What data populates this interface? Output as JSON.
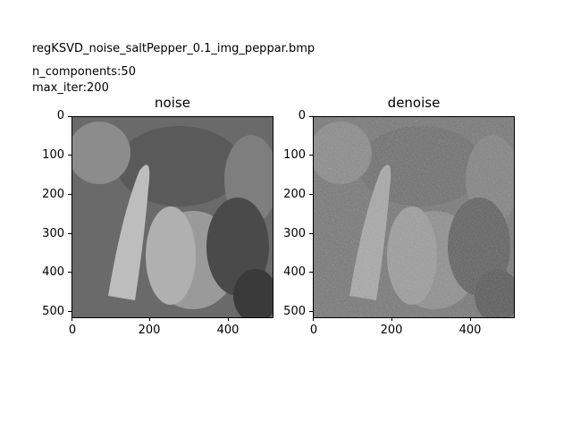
{
  "header": {
    "filename": "regKSVD_noise_saltPepper_0.1_img_peppar.bmp",
    "n_components": "n_components:50",
    "max_iter": "max_iter:200"
  },
  "panels": [
    {
      "title": "noise",
      "y_ticks": [
        "0",
        "100",
        "200",
        "300",
        "400",
        "500"
      ],
      "x_ticks": [
        "0",
        "200",
        "400"
      ],
      "image": "peppers-salt-pepper-noise"
    },
    {
      "title": "denoise",
      "y_ticks": [
        "0",
        "100",
        "200",
        "300",
        "400",
        "500"
      ],
      "x_ticks": [
        "0",
        "200",
        "400"
      ],
      "image": "peppers-denoised"
    }
  ]
}
